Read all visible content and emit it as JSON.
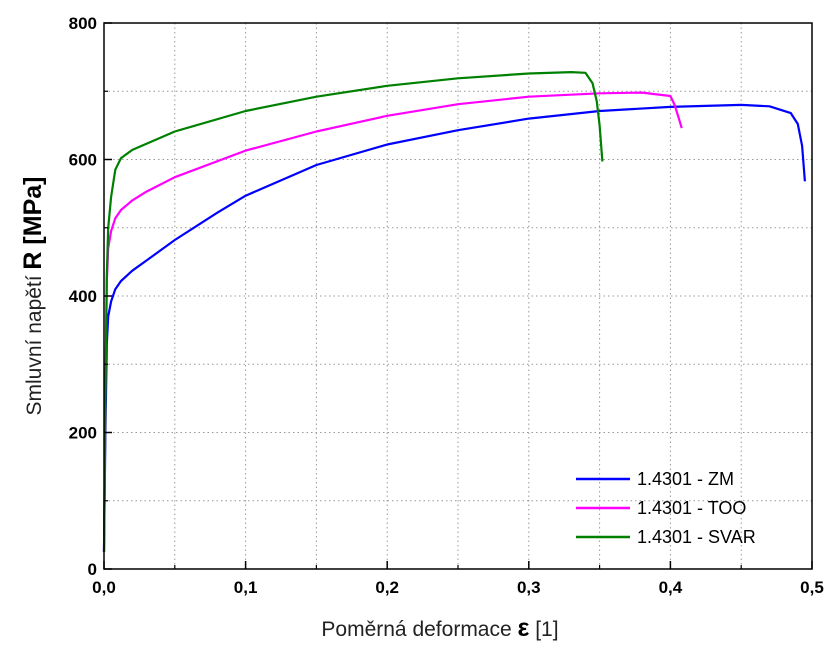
{
  "chart_data": {
    "type": "line",
    "xlabel": {
      "prefix": "Poměrná deformace ",
      "symbol": "ε",
      "suffix": " [1]"
    },
    "ylabel": {
      "prefix": "Smluvní napětí ",
      "symbol": "R",
      "suffix": " [MPa]"
    },
    "xlim": [
      0,
      0.5
    ],
    "ylim": [
      0,
      800
    ],
    "x_ticks": [
      0.0,
      0.1,
      0.2,
      0.3,
      0.4,
      0.5
    ],
    "x_tick_labels": [
      "0,0",
      "0,1",
      "0,2",
      "0,3",
      "0,4",
      "0,5"
    ],
    "y_ticks": [
      0,
      200,
      400,
      600,
      800
    ],
    "y_tick_labels": [
      "0",
      "200",
      "400",
      "600",
      "800"
    ],
    "grid": true,
    "legend_position": "bottom-right",
    "series": [
      {
        "name": "1.4301 - ZM",
        "color": "#0000ff",
        "x": [
          0.0,
          0.001,
          0.002,
          0.003,
          0.005,
          0.008,
          0.012,
          0.02,
          0.03,
          0.05,
          0.08,
          0.1,
          0.15,
          0.2,
          0.25,
          0.3,
          0.35,
          0.4,
          0.45,
          0.47,
          0.485,
          0.49,
          0.493,
          0.495
        ],
        "y": [
          25,
          200,
          330,
          370,
          392,
          410,
          422,
          437,
          452,
          482,
          522,
          547,
          592,
          622,
          643,
          660,
          671,
          677,
          680,
          678,
          668,
          652,
          620,
          568
        ]
      },
      {
        "name": "1.4301 - TOO",
        "color": "#ff00ff",
        "x": [
          0.0,
          0.001,
          0.002,
          0.003,
          0.005,
          0.008,
          0.012,
          0.02,
          0.03,
          0.05,
          0.1,
          0.15,
          0.2,
          0.25,
          0.3,
          0.35,
          0.38,
          0.4,
          0.403,
          0.406,
          0.408
        ],
        "y": [
          25,
          250,
          420,
          470,
          495,
          514,
          526,
          540,
          553,
          574,
          613,
          641,
          664,
          681,
          692,
          697,
          698,
          693,
          680,
          660,
          646
        ]
      },
      {
        "name": "1.4301 - SVAR",
        "color": "#008000",
        "x": [
          0.0,
          0.001,
          0.002,
          0.003,
          0.005,
          0.008,
          0.012,
          0.02,
          0.03,
          0.05,
          0.1,
          0.15,
          0.2,
          0.25,
          0.3,
          0.33,
          0.34,
          0.345,
          0.348,
          0.35,
          0.352
        ],
        "y": [
          25,
          250,
          430,
          500,
          545,
          585,
          602,
          614,
          623,
          641,
          671,
          692,
          708,
          719,
          726,
          728,
          727,
          712,
          685,
          650,
          597
        ]
      }
    ]
  }
}
